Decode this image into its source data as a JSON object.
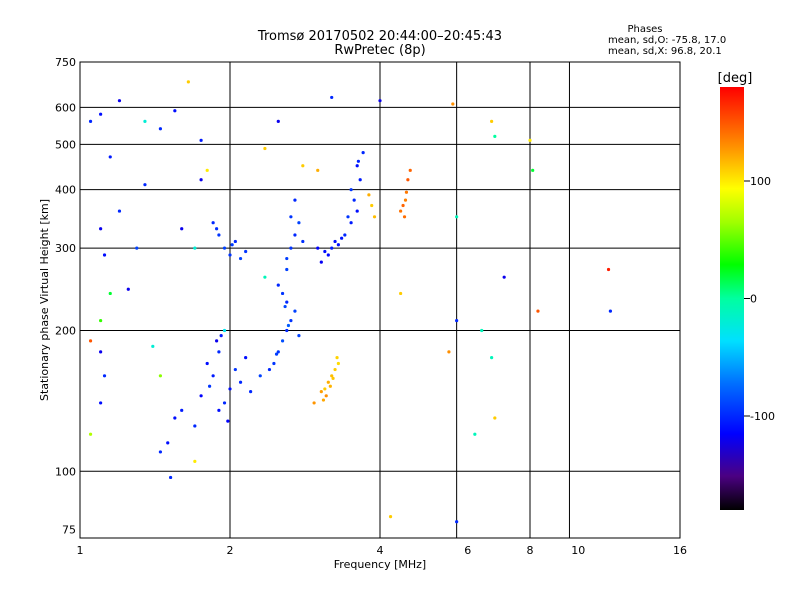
{
  "chart_data": {
    "type": "scatter",
    "title": "Tromsø 20170502 20:44:00–20:45:43",
    "subtitle": "RwPretec (8p)",
    "xlabel": "Frequency [MHz]",
    "ylabel": "Stationary phase Virtual Height [km]",
    "xscale": "log2",
    "yscale": "log",
    "xlim": [
      1,
      16
    ],
    "ylim": [
      72,
      750
    ],
    "x_ticks": [
      1,
      2,
      4,
      6,
      8,
      10,
      16
    ],
    "x_tick_labels": [
      "1",
      "2",
      "4",
      "6",
      "8",
      "10",
      "16"
    ],
    "x_grid": [
      2,
      4,
      5.7,
      8,
      9.6
    ],
    "y_ticks": [
      75,
      100,
      200,
      300,
      400,
      500,
      600,
      750
    ],
    "y_tick_labels": [
      "75",
      "100",
      "200",
      "300",
      "400",
      "500",
      "600",
      "750"
    ],
    "phases": {
      "title": "Phases",
      "line1": "mean, sd,O: -75.8, 17.0",
      "line2": "mean, sd,X:  96.8, 20.1"
    },
    "colorbar": {
      "label": "[deg]",
      "range": [
        -180,
        180
      ],
      "ticks": [
        100,
        0,
        -100
      ],
      "tick_labels": [
        "100",
        "0",
        "-100"
      ]
    },
    "points": [
      [
        1.9,
        135,
        -110
      ],
      [
        1.95,
        140,
        -100
      ],
      [
        2.0,
        150,
        -110
      ],
      [
        1.85,
        160,
        -105
      ],
      [
        1.8,
        170,
        -110
      ],
      [
        1.9,
        180,
        -100
      ],
      [
        1.75,
        145,
        -115
      ],
      [
        1.6,
        135,
        -105
      ],
      [
        1.55,
        130,
        -110
      ],
      [
        1.7,
        125,
        -100
      ],
      [
        2.05,
        165,
        -95
      ],
      [
        2.1,
        155,
        -100
      ],
      [
        2.15,
        175,
        -110
      ],
      [
        1.88,
        190,
        -120
      ],
      [
        1.92,
        195,
        -105
      ],
      [
        1.5,
        115,
        -110
      ],
      [
        1.45,
        110,
        -100
      ],
      [
        1.98,
        128,
        -115
      ],
      [
        1.82,
        152,
        -95
      ],
      [
        2.2,
        148,
        -100
      ],
      [
        2.3,
        160,
        -90
      ],
      [
        2.4,
        165,
        -100
      ],
      [
        2.5,
        180,
        -95
      ],
      [
        2.55,
        190,
        -85
      ],
      [
        2.6,
        200,
        -100
      ],
      [
        2.65,
        210,
        -95
      ],
      [
        2.7,
        220,
        -90
      ],
      [
        2.6,
        230,
        -100
      ],
      [
        2.55,
        240,
        -95
      ],
      [
        2.5,
        250,
        -100
      ],
      [
        2.75,
        195,
        -90
      ],
      [
        2.45,
        170,
        -95
      ],
      [
        2.62,
        205,
        -80
      ],
      [
        2.48,
        178,
        -92
      ],
      [
        2.58,
        225,
        -88
      ],
      [
        2.0,
        290,
        -95
      ],
      [
        1.95,
        300,
        -90
      ],
      [
        2.05,
        310,
        -100
      ],
      [
        1.9,
        320,
        -95
      ],
      [
        1.85,
        340,
        -100
      ],
      [
        2.1,
        285,
        -90
      ],
      [
        2.15,
        295,
        -95
      ],
      [
        1.88,
        330,
        -98
      ],
      [
        2.02,
        305,
        -92
      ],
      [
        2.6,
        270,
        -90
      ],
      [
        2.65,
        300,
        -95
      ],
      [
        2.7,
        320,
        -100
      ],
      [
        2.65,
        350,
        -95
      ],
      [
        2.7,
        380,
        -100
      ],
      [
        2.75,
        340,
        -90
      ],
      [
        2.6,
        285,
        -92
      ],
      [
        2.8,
        310,
        -97
      ],
      [
        3.0,
        300,
        -115
      ],
      [
        3.1,
        295,
        -110
      ],
      [
        3.2,
        300,
        -105
      ],
      [
        3.3,
        305,
        -110
      ],
      [
        3.4,
        320,
        -100
      ],
      [
        3.5,
        340,
        -105
      ],
      [
        3.6,
        360,
        -110
      ],
      [
        3.55,
        380,
        -100
      ],
      [
        3.65,
        420,
        -105
      ],
      [
        3.6,
        450,
        -110
      ],
      [
        3.7,
        480,
        -100
      ],
      [
        3.45,
        350,
        -95
      ],
      [
        3.25,
        310,
        -110
      ],
      [
        3.15,
        290,
        -112
      ],
      [
        3.35,
        315,
        -108
      ],
      [
        3.05,
        280,
        -118
      ],
      [
        3.5,
        400,
        -95
      ],
      [
        3.62,
        460,
        -102
      ],
      [
        3.1,
        150,
        110
      ],
      [
        3.15,
        155,
        120
      ],
      [
        3.2,
        160,
        115
      ],
      [
        3.05,
        148,
        125
      ],
      [
        3.25,
        165,
        110
      ],
      [
        3.3,
        170,
        105
      ],
      [
        3.12,
        145,
        130
      ],
      [
        3.18,
        152,
        118
      ],
      [
        3.22,
        158,
        112
      ],
      [
        3.28,
        175,
        108
      ],
      [
        3.08,
        142,
        122
      ],
      [
        2.95,
        140,
        128
      ],
      [
        4.4,
        360,
        140
      ],
      [
        4.5,
        380,
        135
      ],
      [
        4.45,
        370,
        145
      ],
      [
        4.55,
        420,
        150
      ],
      [
        4.6,
        440,
        145
      ],
      [
        4.52,
        395,
        138
      ],
      [
        4.48,
        350,
        142
      ],
      [
        3.8,
        390,
        120
      ],
      [
        3.9,
        350,
        115
      ],
      [
        3.85,
        370,
        110
      ],
      [
        1.05,
        560,
        -100
      ],
      [
        1.1,
        580,
        -110
      ],
      [
        1.15,
        470,
        -105
      ],
      [
        1.2,
        620,
        -120
      ],
      [
        1.35,
        560,
        -20
      ],
      [
        1.45,
        540,
        -100
      ],
      [
        1.55,
        590,
        -110
      ],
      [
        1.65,
        680,
        110
      ],
      [
        1.75,
        510,
        -105
      ],
      [
        2.5,
        560,
        -120
      ],
      [
        3.2,
        630,
        -100
      ],
      [
        4.0,
        620,
        -120
      ],
      [
        5.6,
        610,
        130
      ],
      [
        6.8,
        520,
        0
      ],
      [
        6.7,
        560,
        110
      ],
      [
        8.0,
        510,
        100
      ],
      [
        1.1,
        330,
        -120
      ],
      [
        1.12,
        290,
        -110
      ],
      [
        1.2,
        360,
        -100
      ],
      [
        1.3,
        300,
        -90
      ],
      [
        1.15,
        240,
        20
      ],
      [
        1.25,
        245,
        -120
      ],
      [
        1.1,
        210,
        40
      ],
      [
        1.05,
        190,
        150
      ],
      [
        1.1,
        180,
        -120
      ],
      [
        1.12,
        160,
        -100
      ],
      [
        1.1,
        140,
        -110
      ],
      [
        1.05,
        120,
        70
      ],
      [
        1.6,
        330,
        -120
      ],
      [
        1.7,
        300,
        -20
      ],
      [
        2.8,
        450,
        110
      ],
      [
        3.0,
        440,
        120
      ],
      [
        4.4,
        240,
        110
      ],
      [
        5.5,
        180,
        130
      ],
      [
        5.7,
        210,
        -100
      ],
      [
        5.7,
        350,
        -10
      ],
      [
        6.2,
        120,
        -10
      ],
      [
        6.4,
        200,
        -10
      ],
      [
        6.7,
        175,
        -10
      ],
      [
        6.8,
        130,
        110
      ],
      [
        7.1,
        260,
        -120
      ],
      [
        8.1,
        440,
        20
      ],
      [
        8.3,
        220,
        150
      ],
      [
        11.5,
        270,
        170
      ],
      [
        11.6,
        220,
        -100
      ],
      [
        1.35,
        410,
        -100
      ],
      [
        1.75,
        420,
        -120
      ],
      [
        1.8,
        440,
        100
      ],
      [
        2.35,
        490,
        110
      ],
      [
        5.7,
        78,
        -100
      ],
      [
        4.2,
        80,
        110
      ],
      [
        1.52,
        97,
        -100
      ],
      [
        1.7,
        105,
        100
      ],
      [
        1.95,
        200,
        -30
      ],
      [
        2.35,
        260,
        -10
      ],
      [
        1.45,
        160,
        60
      ],
      [
        1.4,
        185,
        -20
      ]
    ]
  }
}
